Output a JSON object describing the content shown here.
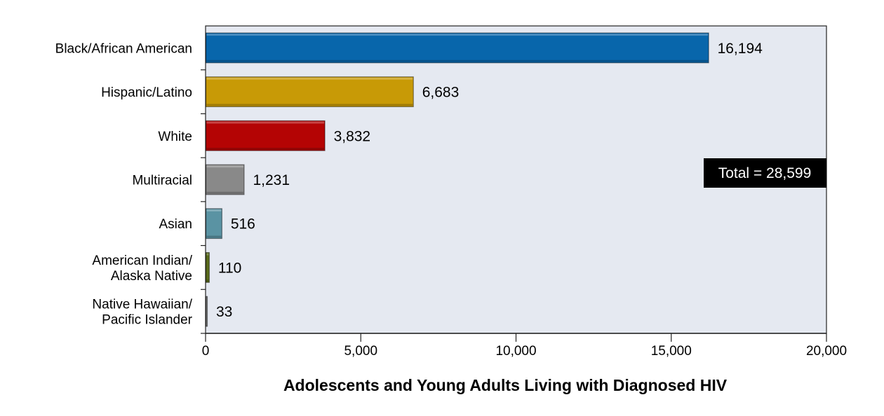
{
  "chart_data": {
    "type": "bar",
    "orientation": "horizontal",
    "title": "",
    "xlabel": "Adolescents and Young Adults Living with Diagnosed HIV",
    "ylabel": "",
    "xlim": [
      0,
      20000
    ],
    "xticks": [
      0,
      5000,
      10000,
      15000,
      20000
    ],
    "xtick_labels": [
      "0",
      "5,000",
      "10,000",
      "15,000",
      "20,000"
    ],
    "grid": false,
    "categories": [
      [
        "Black/African American"
      ],
      [
        "Hispanic/Latino"
      ],
      [
        "White"
      ],
      [
        "Multiracial"
      ],
      [
        "Asian"
      ],
      [
        "American Indian/",
        "Alaska Native"
      ],
      [
        "Native Hawaiian/",
        "Pacific Islander"
      ]
    ],
    "values": [
      16194,
      6683,
      3832,
      1231,
      516,
      110,
      33
    ],
    "value_labels": [
      "16,194",
      "6,683",
      "3,832",
      "1,231",
      "516",
      "110",
      "33"
    ],
    "colors": [
      "#0866ab",
      "#c89a06",
      "#b40404",
      "#898989",
      "#5a93a3",
      "#5a6b1c",
      "#7a7a7a"
    ],
    "annotation": "Total = 28,599",
    "plot_background": "#e5e9f1"
  }
}
